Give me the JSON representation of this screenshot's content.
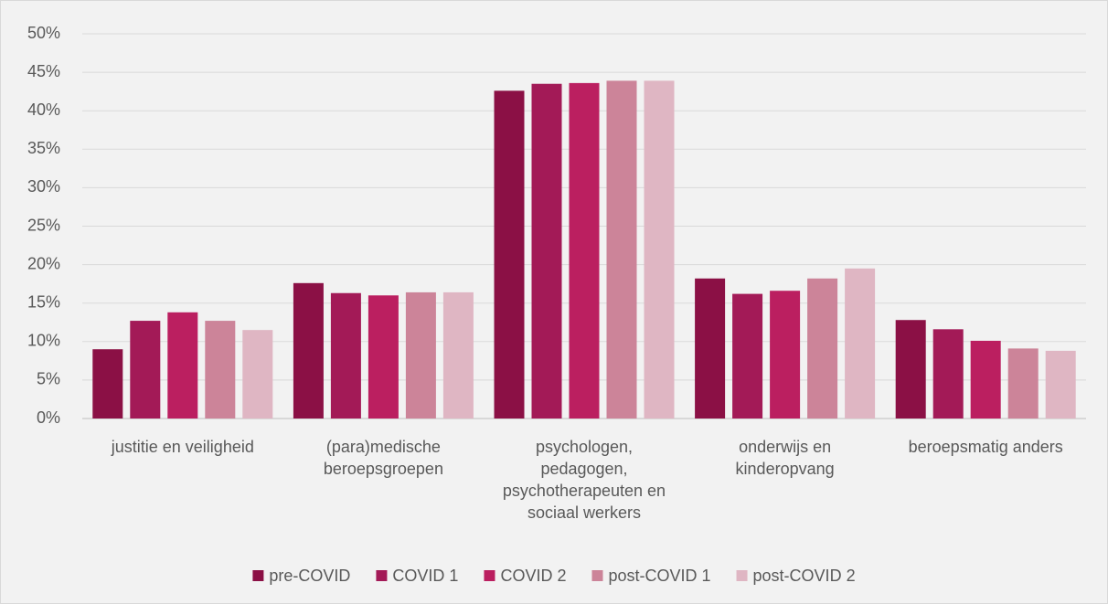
{
  "chart_data": {
    "type": "bar",
    "categories": [
      "justitie en veiligheid",
      "(para)medische beroepsgroepen",
      "psychologen, pedagogen, psychotherapeuten en sociaal werkers",
      "onderwijs en kinderopvang",
      "beroepsmatig anders"
    ],
    "series": [
      {
        "name": "pre-COVID",
        "color": "#8b1045",
        "values": [
          9.0,
          17.6,
          42.6,
          18.2,
          12.8
        ]
      },
      {
        "name": "COVID 1",
        "color": "#a31a57",
        "values": [
          12.7,
          16.3,
          43.5,
          16.2,
          11.6
        ]
      },
      {
        "name": "COVID 2",
        "color": "#bb1f60",
        "values": [
          13.8,
          16.0,
          43.6,
          16.6,
          10.1
        ]
      },
      {
        "name": "post-COVID 1",
        "color": "#cc8499",
        "values": [
          12.7,
          16.4,
          43.9,
          18.2,
          9.1
        ]
      },
      {
        "name": "post-COVID 2",
        "color": "#dfb6c3",
        "values": [
          11.5,
          16.4,
          43.9,
          19.5,
          8.8
        ]
      }
    ],
    "ylim": [
      0,
      50
    ],
    "yticks": [
      {
        "value": 0,
        "label": "0%"
      },
      {
        "value": 5,
        "label": "5%"
      },
      {
        "value": 10,
        "label": "10%"
      },
      {
        "value": 15,
        "label": "15%"
      },
      {
        "value": 20,
        "label": "20%"
      },
      {
        "value": 25,
        "label": "25%"
      },
      {
        "value": 30,
        "label": "30%"
      },
      {
        "value": 35,
        "label": "35%"
      },
      {
        "value": 40,
        "label": "40%"
      },
      {
        "value": 45,
        "label": "45%"
      },
      {
        "value": 50,
        "label": "50%"
      }
    ],
    "grid": true,
    "legend": "bottom"
  }
}
